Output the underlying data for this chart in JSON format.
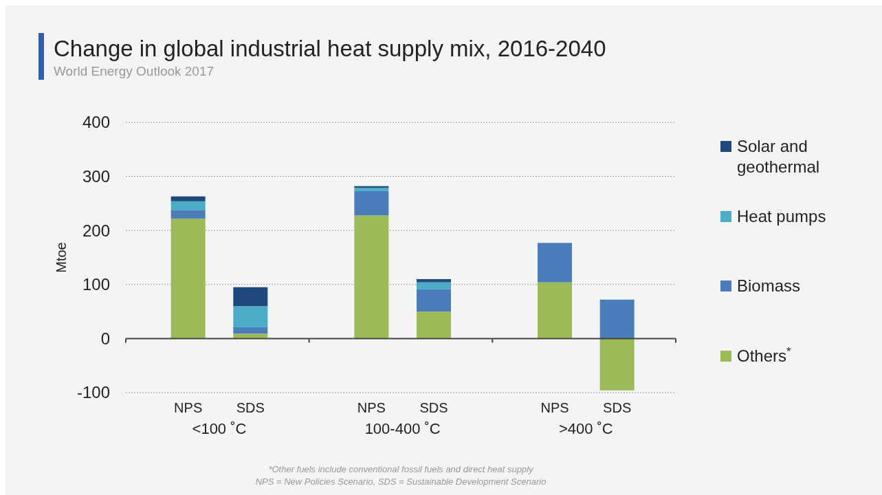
{
  "chart_data": {
    "type": "bar",
    "title": "Change in global industrial heat supply mix, 2016-2040",
    "subtitle": "World Energy Outlook 2017",
    "ylabel": "Mtoe",
    "categories": [
      "NPS",
      "SDS",
      "NPS",
      "SDS",
      "NPS",
      "SDS"
    ],
    "series": [
      {
        "name": "Others$^{*}$",
        "color": "#9bbb59",
        "values": [
          222,
          9,
          228,
          50,
          104,
          -96
        ]
      },
      {
        "name": "Biomass",
        "color": "#4a7ebb",
        "values": [
          16,
          12,
          45,
          41,
          73,
          72
        ]
      },
      {
        "name": "Heat pumps",
        "color": "#4bacc6",
        "values": [
          16,
          39,
          6,
          13,
          0,
          0
        ]
      },
      {
        "name": "Solar and geothermal",
        "color": "#1f497d",
        "values": [
          9,
          35,
          3,
          6,
          0,
          0
        ]
      }
    ],
    "stacked": true,
    "ylim": [
      -100,
      400
    ],
    "yticks": [
      -100,
      0,
      100,
      200,
      300,
      400
    ],
    "grid": "y",
    "legend": "right",
    "annotations": [
      "<100 ˚C",
      "100-400 ˚C",
      ">400 ˚C",
      "*Other fuels include conventional fossil fuels and direct heat supply",
      "NPS = New Policies Scenario, SDS = Sustainable Development Scenario"
    ]
  }
}
